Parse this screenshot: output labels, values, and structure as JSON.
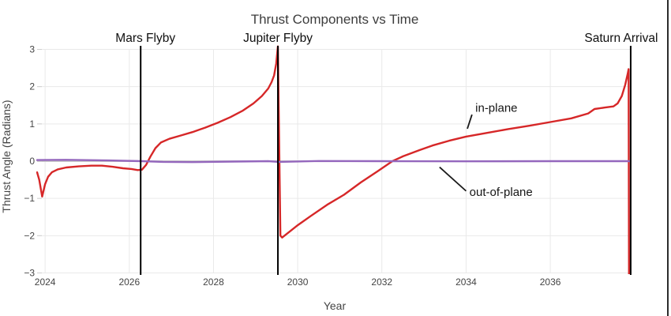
{
  "window": {
    "right_border_color": "#2b2b2b"
  },
  "chart_data": {
    "type": "line",
    "title": "Thrust Components vs Time",
    "xlabel": "Year",
    "ylabel": "Thrust Angle (Radians)",
    "xlim": [
      2023.81,
      2037.93
    ],
    "ylim": [
      -3,
      3
    ],
    "x_ticks": [
      2024,
      2026,
      2028,
      2030,
      2032,
      2034,
      2036
    ],
    "y_ticks": [
      -3,
      -2,
      -1,
      0,
      1,
      2,
      3
    ],
    "grid": true,
    "grid_color": "#e9e9e9",
    "zeroline_color": "#c9c9c9",
    "series": [
      {
        "name": "in-plane",
        "color": "#d62728",
        "points": [
          [
            2023.81,
            -0.3
          ],
          [
            2023.86,
            -0.5
          ],
          [
            2023.93,
            -0.95
          ],
          [
            2024.0,
            -0.62
          ],
          [
            2024.07,
            -0.42
          ],
          [
            2024.16,
            -0.3
          ],
          [
            2024.3,
            -0.22
          ],
          [
            2024.5,
            -0.17
          ],
          [
            2024.8,
            -0.14
          ],
          [
            2025.1,
            -0.12
          ],
          [
            2025.35,
            -0.12
          ],
          [
            2025.6,
            -0.15
          ],
          [
            2025.85,
            -0.19
          ],
          [
            2026.05,
            -0.21
          ],
          [
            2026.2,
            -0.24
          ],
          [
            2026.3,
            -0.23
          ],
          [
            2026.4,
            -0.1
          ],
          [
            2026.5,
            0.12
          ],
          [
            2026.62,
            0.35
          ],
          [
            2026.75,
            0.5
          ],
          [
            2026.95,
            0.6
          ],
          [
            2027.2,
            0.68
          ],
          [
            2027.5,
            0.78
          ],
          [
            2027.8,
            0.9
          ],
          [
            2028.1,
            1.03
          ],
          [
            2028.4,
            1.18
          ],
          [
            2028.7,
            1.36
          ],
          [
            2028.95,
            1.55
          ],
          [
            2029.15,
            1.75
          ],
          [
            2029.3,
            1.95
          ],
          [
            2029.38,
            2.12
          ],
          [
            2029.44,
            2.3
          ],
          [
            2029.49,
            2.62
          ],
          [
            2029.53,
            3.08
          ],
          [
            2029.59,
            -2.0
          ],
          [
            2029.63,
            -2.05
          ],
          [
            2029.8,
            -1.9
          ],
          [
            2030.0,
            -1.72
          ],
          [
            2030.3,
            -1.48
          ],
          [
            2030.7,
            -1.17
          ],
          [
            2031.1,
            -0.9
          ],
          [
            2031.5,
            -0.57
          ],
          [
            2031.9,
            -0.27
          ],
          [
            2032.25,
            0.0
          ],
          [
            2032.5,
            0.13
          ],
          [
            2032.9,
            0.3
          ],
          [
            2033.2,
            0.42
          ],
          [
            2033.6,
            0.55
          ],
          [
            2034.0,
            0.66
          ],
          [
            2034.5,
            0.76
          ],
          [
            2035.0,
            0.86
          ],
          [
            2035.5,
            0.95
          ],
          [
            2036.0,
            1.05
          ],
          [
            2036.5,
            1.15
          ],
          [
            2036.9,
            1.28
          ],
          [
            2037.05,
            1.4
          ],
          [
            2037.3,
            1.44
          ],
          [
            2037.5,
            1.47
          ],
          [
            2037.6,
            1.55
          ],
          [
            2037.7,
            1.75
          ],
          [
            2037.78,
            2.05
          ],
          [
            2037.84,
            2.35
          ],
          [
            2037.86,
            2.47
          ],
          [
            2037.87,
            -3.05
          ]
        ]
      },
      {
        "name": "out-of-plane",
        "color": "#9467bd",
        "points": [
          [
            2023.81,
            0.03
          ],
          [
            2024.5,
            0.035
          ],
          [
            2025.5,
            0.02
          ],
          [
            2026.3,
            0.0
          ],
          [
            2026.8,
            -0.02
          ],
          [
            2027.5,
            -0.025
          ],
          [
            2028.5,
            -0.01
          ],
          [
            2029.3,
            0.0
          ],
          [
            2029.55,
            -0.02
          ],
          [
            2030.5,
            0.005
          ],
          [
            2032.0,
            0.0
          ],
          [
            2034.0,
            -0.005
          ],
          [
            2036.0,
            0.0
          ],
          [
            2037.88,
            0.0
          ]
        ]
      }
    ],
    "events": [
      {
        "label": "Mars Flyby",
        "year": 2026.27,
        "label_offset_x": 6
      },
      {
        "label": "Jupiter Flyby",
        "year": 2029.53,
        "label_offset_x": 0
      },
      {
        "label": "Saturn Arrival",
        "year": 2037.91,
        "label_offset_x": -12
      }
    ],
    "event_line_color": "#000000",
    "annotations": [
      {
        "text": "in-plane",
        "text_xy": [
          2034.22,
          1.32
        ],
        "leader": [
          [
            2034.03,
            0.87
          ],
          [
            2034.14,
            1.25
          ]
        ]
      },
      {
        "text": "out-of-plane",
        "text_xy": [
          2034.08,
          -0.93
        ],
        "leader": [
          [
            2033.37,
            -0.16
          ],
          [
            2034.0,
            -0.8
          ]
        ]
      }
    ]
  }
}
